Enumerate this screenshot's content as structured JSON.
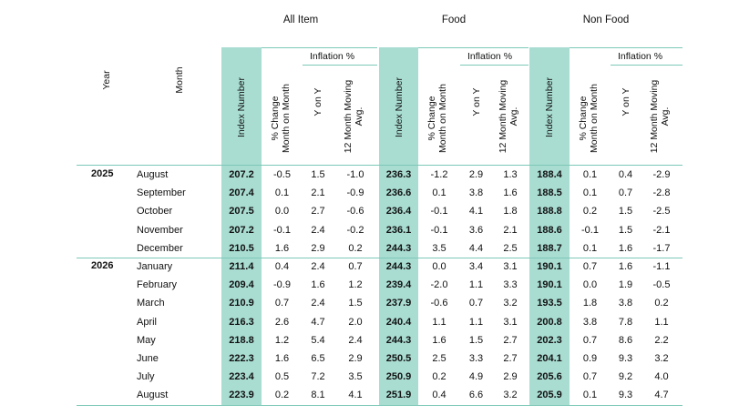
{
  "headers": {
    "year": "Year",
    "month": "Month",
    "groups": [
      "All Item",
      "Food",
      "Non Food"
    ],
    "index_number": "Index Number",
    "pct_change": [
      "% Change",
      "Month on Month"
    ],
    "inflation": "Inflation %",
    "y_on_y": "Y on Y",
    "moving_avg": [
      "12 Month Moving",
      "Avg."
    ]
  },
  "rows": [
    {
      "year": "2025",
      "month": "August",
      "vals": [
        "207.2",
        "-0.5",
        "1.5",
        "-1.0",
        "236.3",
        "-1.2",
        "2.9",
        "1.3",
        "188.4",
        "0.1",
        "0.4",
        "-2.9"
      ]
    },
    {
      "year": "",
      "month": "September",
      "vals": [
        "207.4",
        "0.1",
        "2.1",
        "-0.9",
        "236.6",
        "0.1",
        "3.8",
        "1.6",
        "188.5",
        "0.1",
        "0.7",
        "-2.8"
      ]
    },
    {
      "year": "",
      "month": "October",
      "vals": [
        "207.5",
        "0.0",
        "2.7",
        "-0.6",
        "236.4",
        "-0.1",
        "4.1",
        "1.8",
        "188.8",
        "0.2",
        "1.5",
        "-2.5"
      ]
    },
    {
      "year": "",
      "month": "November",
      "vals": [
        "207.2",
        "-0.1",
        "2.4",
        "-0.2",
        "236.1",
        "-0.1",
        "3.6",
        "2.1",
        "188.6",
        "-0.1",
        "1.5",
        "-2.1"
      ]
    },
    {
      "year": "",
      "month": "December",
      "vals": [
        "210.5",
        "1.6",
        "2.9",
        "0.2",
        "244.3",
        "3.5",
        "4.4",
        "2.5",
        "188.7",
        "0.1",
        "1.6",
        "-1.7"
      ]
    },
    {
      "year": "2026",
      "month": "January",
      "vals": [
        "211.4",
        "0.4",
        "2.4",
        "0.7",
        "244.3",
        "0.0",
        "3.4",
        "3.1",
        "190.1",
        "0.7",
        "1.6",
        "-1.1"
      ]
    },
    {
      "year": "",
      "month": "February",
      "vals": [
        "209.4",
        "-0.9",
        "1.6",
        "1.2",
        "239.4",
        "-2.0",
        "1.1",
        "3.3",
        "190.1",
        "0.0",
        "1.9",
        "-0.5"
      ]
    },
    {
      "year": "",
      "month": "March",
      "vals": [
        "210.9",
        "0.7",
        "2.4",
        "1.5",
        "237.9",
        "-0.6",
        "0.7",
        "3.2",
        "193.5",
        "1.8",
        "3.8",
        "0.2"
      ]
    },
    {
      "year": "",
      "month": "April",
      "vals": [
        "216.3",
        "2.6",
        "4.7",
        "2.0",
        "240.4",
        "1.1",
        "1.1",
        "3.1",
        "200.8",
        "3.8",
        "7.8",
        "1.1"
      ]
    },
    {
      "year": "",
      "month": "May",
      "vals": [
        "218.8",
        "1.2",
        "5.4",
        "2.4",
        "244.3",
        "1.6",
        "1.5",
        "2.7",
        "202.3",
        "0.7",
        "8.6",
        "2.2"
      ]
    },
    {
      "year": "",
      "month": "June",
      "vals": [
        "222.3",
        "1.6",
        "6.5",
        "2.9",
        "250.5",
        "2.5",
        "3.3",
        "2.7",
        "204.1",
        "0.9",
        "9.3",
        "3.2"
      ]
    },
    {
      "year": "",
      "month": "July",
      "vals": [
        "223.4",
        "0.5",
        "7.2",
        "3.5",
        "250.9",
        "0.2",
        "4.9",
        "2.9",
        "205.6",
        "0.7",
        "9.2",
        "4.0"
      ]
    },
    {
      "year": "",
      "month": "August",
      "vals": [
        "223.9",
        "0.2",
        "8.1",
        "4.1",
        "251.9",
        "0.4",
        "6.6",
        "3.2",
        "205.9",
        "0.1",
        "9.3",
        "4.7"
      ]
    }
  ],
  "colors": {
    "band": "#a9ddd2",
    "rule": "#7cc8b8"
  }
}
